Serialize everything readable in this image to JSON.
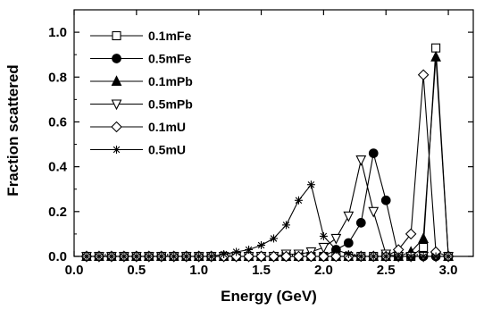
{
  "chart_data": {
    "type": "line",
    "title": "",
    "xlabel": "Energy (GeV)",
    "ylabel": "Fraction scattered",
    "xlim": [
      0.0,
      3.2
    ],
    "ylim": [
      0.0,
      1.1
    ],
    "xticks": [
      0.0,
      0.5,
      1.0,
      1.5,
      2.0,
      2.5,
      3.0
    ],
    "yticks": [
      0.0,
      0.2,
      0.4,
      0.6,
      0.8,
      1.0
    ],
    "xtick_labels": [
      "0.0",
      "0.5",
      "1.0",
      "1.5",
      "2.0",
      "2.5",
      "3.0"
    ],
    "ytick_labels": [
      "0.0",
      "0.2",
      "0.4",
      "0.6",
      "0.8",
      "1.0"
    ],
    "grid": false,
    "legend_position": "top-left",
    "series": [
      {
        "name": "0.1mFe",
        "marker": "square-open",
        "x": [
          0.1,
          0.2,
          0.3,
          0.4,
          0.5,
          0.6,
          0.7,
          0.8,
          0.9,
          1.0,
          1.1,
          1.2,
          1.3,
          1.4,
          1.5,
          1.6,
          1.7,
          1.8,
          1.9,
          2.0,
          2.1,
          2.2,
          2.3,
          2.4,
          2.5,
          2.6,
          2.7,
          2.8,
          2.9,
          3.0
        ],
        "y": [
          0,
          0,
          0,
          0,
          0,
          0,
          0,
          0,
          0,
          0,
          0,
          0,
          0,
          0,
          0,
          0,
          0,
          0,
          0,
          0,
          0,
          0,
          0,
          0,
          0,
          0,
          0,
          0.04,
          0.93,
          0
        ]
      },
      {
        "name": "0.5mFe",
        "marker": "circle-filled",
        "x": [
          0.1,
          0.2,
          0.3,
          0.4,
          0.5,
          0.6,
          0.7,
          0.8,
          0.9,
          1.0,
          1.1,
          1.2,
          1.3,
          1.4,
          1.5,
          1.6,
          1.7,
          1.8,
          1.9,
          2.0,
          2.1,
          2.2,
          2.3,
          2.4,
          2.5,
          2.6,
          2.7,
          2.8,
          2.9,
          3.0
        ],
        "y": [
          0,
          0,
          0,
          0,
          0,
          0,
          0,
          0,
          0,
          0,
          0,
          0,
          0,
          0,
          0,
          0,
          0,
          0,
          0,
          0,
          0.03,
          0.06,
          0.15,
          0.46,
          0.25,
          0,
          0,
          0,
          0,
          0
        ]
      },
      {
        "name": "0.1mPb",
        "marker": "triangle-up-filled",
        "x": [
          0.1,
          0.2,
          0.3,
          0.4,
          0.5,
          0.6,
          0.7,
          0.8,
          0.9,
          1.0,
          1.1,
          1.2,
          1.3,
          1.4,
          1.5,
          1.6,
          1.7,
          1.8,
          1.9,
          2.0,
          2.1,
          2.2,
          2.3,
          2.4,
          2.5,
          2.6,
          2.7,
          2.8,
          2.9,
          3.0
        ],
        "y": [
          0,
          0,
          0,
          0,
          0,
          0,
          0,
          0,
          0,
          0,
          0,
          0,
          0,
          0,
          0,
          0,
          0,
          0,
          0,
          0,
          0,
          0,
          0,
          0,
          0,
          0,
          0.02,
          0.08,
          0.89,
          0
        ]
      },
      {
        "name": "0.5mPb",
        "marker": "triangle-down-open",
        "x": [
          0.1,
          0.2,
          0.3,
          0.4,
          0.5,
          0.6,
          0.7,
          0.8,
          0.9,
          1.0,
          1.1,
          1.2,
          1.3,
          1.4,
          1.5,
          1.6,
          1.7,
          1.8,
          1.9,
          2.0,
          2.1,
          2.2,
          2.3,
          2.4,
          2.5,
          2.6,
          2.7,
          2.8,
          2.9,
          3.0
        ],
        "y": [
          0,
          0,
          0,
          0,
          0,
          0,
          0,
          0,
          0,
          0,
          0,
          0,
          0,
          0,
          0,
          0,
          0.01,
          0.01,
          0.02,
          0.04,
          0.08,
          0.18,
          0.43,
          0.2,
          0.01,
          0,
          0,
          0,
          0,
          0
        ]
      },
      {
        "name": "0.1mU",
        "marker": "diamond-open",
        "x": [
          0.1,
          0.2,
          0.3,
          0.4,
          0.5,
          0.6,
          0.7,
          0.8,
          0.9,
          1.0,
          1.1,
          1.2,
          1.3,
          1.4,
          1.5,
          1.6,
          1.7,
          1.8,
          1.9,
          2.0,
          2.1,
          2.2,
          2.3,
          2.4,
          2.5,
          2.6,
          2.7,
          2.8,
          2.9,
          3.0
        ],
        "y": [
          0,
          0,
          0,
          0,
          0,
          0,
          0,
          0,
          0,
          0,
          0,
          0,
          0,
          0,
          0,
          0,
          0,
          0,
          0,
          0,
          0,
          0,
          0,
          0,
          0,
          0.03,
          0.1,
          0.81,
          0.02,
          0
        ]
      },
      {
        "name": "0.5mU",
        "marker": "star",
        "x": [
          0.1,
          0.2,
          0.3,
          0.4,
          0.5,
          0.6,
          0.7,
          0.8,
          0.9,
          1.0,
          1.1,
          1.2,
          1.3,
          1.4,
          1.5,
          1.6,
          1.7,
          1.8,
          1.9,
          2.0,
          2.1,
          2.2,
          2.3,
          2.4,
          2.5,
          2.6,
          2.7,
          2.8,
          2.9,
          3.0
        ],
        "y": [
          0,
          0,
          0,
          0,
          0,
          0,
          0,
          0,
          0,
          0,
          0,
          0.01,
          0.02,
          0.03,
          0.05,
          0.08,
          0.14,
          0.25,
          0.32,
          0.09,
          0.03,
          0.01,
          0,
          0,
          0,
          0,
          0,
          0,
          0,
          0
        ]
      }
    ]
  }
}
